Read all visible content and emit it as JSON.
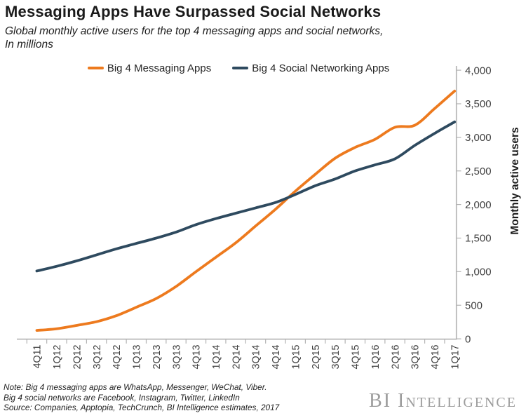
{
  "header": {
    "title": "Messaging Apps Have Surpassed Social Networks",
    "subtitle_line1": "Global monthly active users for the top 4 messaging apps and social networks,",
    "subtitle_line2": "In millions"
  },
  "legend": [
    {
      "label": "Big 4 Messaging Apps",
      "color": "#ED7A1E"
    },
    {
      "label": "Big 4 Social Networking Apps",
      "color": "#2E4A5F"
    }
  ],
  "chart_data": {
    "type": "line",
    "title": "Messaging Apps Have Surpassed Social Networks",
    "xlabel": "",
    "ylabel": "Monthly active users",
    "ylim": [
      0,
      4000
    ],
    "y_tick_step": 500,
    "y_tick_labels": [
      "0",
      "500",
      "1,000",
      "1,500",
      "2,000",
      "2,500",
      "3,000",
      "3,500",
      "4,000"
    ],
    "grid": false,
    "legend_position": "top",
    "axis_color": "#b3b3b3",
    "tick_label_color": "#404040",
    "categories": [
      "4Q11",
      "1Q12",
      "2Q12",
      "3Q12",
      "4Q12",
      "1Q13",
      "2Q13",
      "3Q13",
      "4Q13",
      "1Q14",
      "2Q14",
      "3Q14",
      "4Q14",
      "1Q15",
      "2Q15",
      "3Q15",
      "4Q15",
      "1Q16",
      "2Q16",
      "3Q16",
      "4Q16",
      "1Q17"
    ],
    "series": [
      {
        "name": "Big 4 Messaging Apps",
        "color": "#ED7A1E",
        "values": [
          125,
          150,
          200,
          255,
          345,
          470,
          600,
          780,
          1000,
          1215,
          1430,
          1680,
          1930,
          2200,
          2450,
          2690,
          2850,
          2970,
          3150,
          3180,
          3430,
          3690
        ]
      },
      {
        "name": "Big 4 Social Networking Apps",
        "color": "#2E4A5F",
        "values": [
          1010,
          1080,
          1160,
          1250,
          1340,
          1420,
          1500,
          1590,
          1700,
          1790,
          1870,
          1950,
          2030,
          2150,
          2280,
          2380,
          2500,
          2590,
          2680,
          2880,
          3060,
          3230
        ]
      }
    ]
  },
  "footer": {
    "note_line1": "Note: Big 4 messaging apps are WhatsApp, Messenger, WeChat, Viber.",
    "note_line2": "Big 4 social networks are Facebook, Instagram, Twitter, LinkedIn",
    "source_line": "Source: Companies,  Apptopia, TechCrunch,  BI Intelligence estimates, 2017",
    "logo": "BI Intelligence"
  }
}
